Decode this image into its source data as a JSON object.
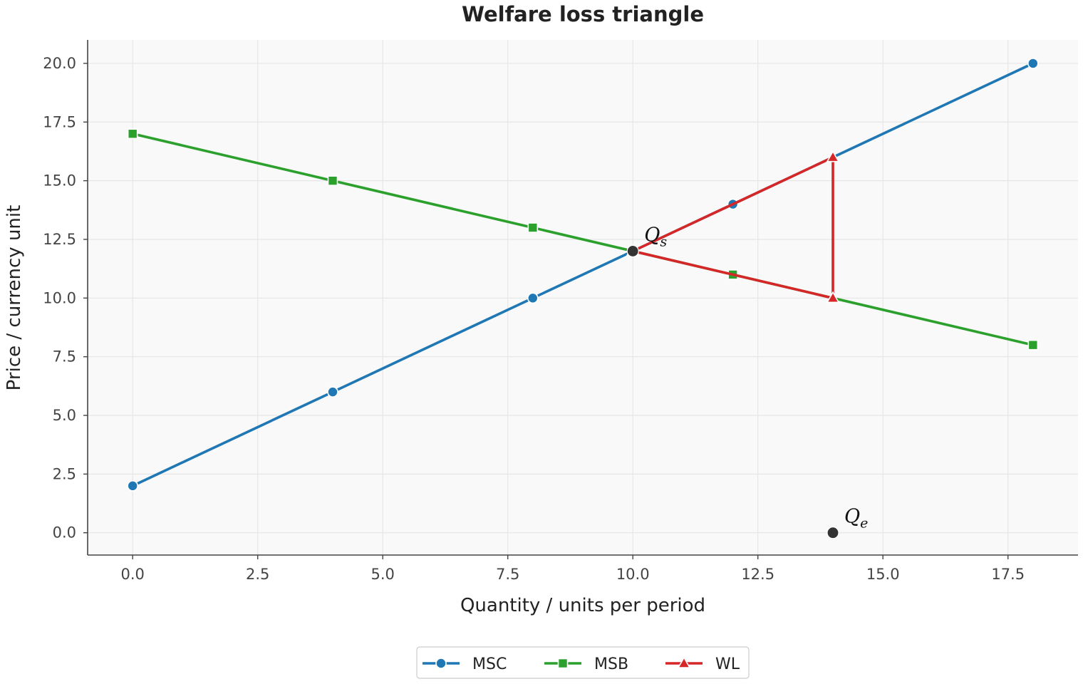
{
  "chart_data": {
    "type": "line",
    "title": "Welfare loss triangle",
    "xlabel": "Quantity / units per period",
    "ylabel": "Price / currency unit",
    "xlim": [
      -0.9,
      18.9
    ],
    "ylim": [
      -0.95,
      21.0
    ],
    "xticks": [
      0,
      2.5,
      5,
      7.5,
      10,
      12.5,
      15,
      17.5
    ],
    "xtick_labels": [
      "0.0",
      "2.5",
      "5.0",
      "7.5",
      "10.0",
      "12.5",
      "15.0",
      "17.5"
    ],
    "yticks": [
      0,
      2.5,
      5,
      7.5,
      10,
      12.5,
      15,
      17.5,
      20
    ],
    "ytick_labels": [
      "0.0",
      "2.5",
      "5.0",
      "7.5",
      "10.0",
      "12.5",
      "15.0",
      "17.5",
      "20.0"
    ],
    "grid": true,
    "legend_position": "bottom-center",
    "series": [
      {
        "name": "MSC",
        "color": "#1f77b4",
        "marker": "circle",
        "x": [
          0,
          4,
          8,
          12,
          18
        ],
        "y": [
          2,
          6,
          10,
          14,
          20
        ]
      },
      {
        "name": "MSB",
        "color": "#2ca02c",
        "marker": "square",
        "x": [
          0,
          4,
          8,
          12,
          18
        ],
        "y": [
          17,
          15,
          13,
          11,
          8
        ]
      },
      {
        "name": "WL",
        "color": "#d62728",
        "marker": "triangle",
        "x": [
          10,
          14,
          14,
          10
        ],
        "y": [
          12,
          16,
          10,
          12
        ]
      }
    ],
    "points": [
      {
        "label": "Q",
        "sub": "s",
        "x": 10,
        "y": 12,
        "color": "#333333"
      },
      {
        "label": "Q",
        "sub": "e",
        "x": 14,
        "y": 0,
        "color": "#333333"
      }
    ]
  }
}
